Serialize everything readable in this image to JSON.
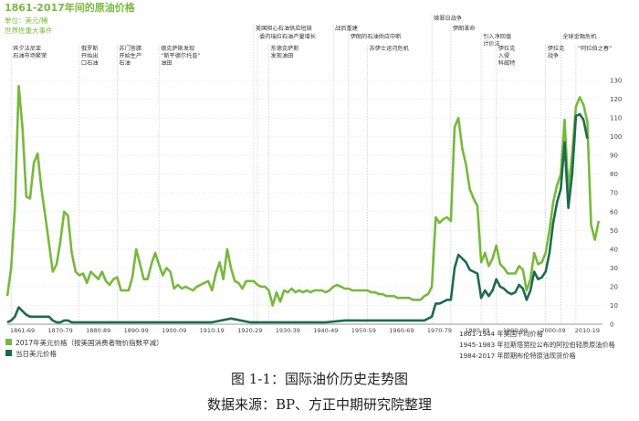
{
  "figure": {
    "caption": "图 1-1：国际油价历史走势图",
    "source": "数据来源：BP、方正中期研究院整理"
  },
  "chart_data": {
    "type": "line",
    "title": "1861-2017年间的原油价格",
    "unit_label": "单位：美元/桶",
    "events_heading": "世界性重大事件",
    "xlim": [
      1861,
      2018
    ],
    "ylim": [
      0,
      130
    ],
    "y_ticks": [
      0,
      10,
      20,
      30,
      40,
      50,
      60,
      70,
      80,
      90,
      100,
      110,
      120,
      130
    ],
    "x_tick_labels": [
      {
        "label": "1861-69",
        "x": 1865
      },
      {
        "label": "1870-79",
        "x": 1875
      },
      {
        "label": "1880-89",
        "x": 1885
      },
      {
        "label": "1890-99",
        "x": 1895
      },
      {
        "label": "1900-09",
        "x": 1905
      },
      {
        "label": "1910-19",
        "x": 1915
      },
      {
        "label": "1920-29",
        "x": 1925
      },
      {
        "label": "1930-39",
        "x": 1935
      },
      {
        "label": "1940-49",
        "x": 1945
      },
      {
        "label": "1950-59",
        "x": 1955
      },
      {
        "label": "1960-69",
        "x": 1965
      },
      {
        "label": "1970-79",
        "x": 1975
      },
      {
        "label": "1980-89",
        "x": 1985
      },
      {
        "label": "1990-99",
        "x": 1995
      },
      {
        "label": "2000-09",
        "x": 2005
      },
      {
        "label": "2010-19",
        "x": 2014
      }
    ],
    "legend": [
      {
        "name": "2017年美元价格（按美国消费者物价指数平减）",
        "color": "#78b83c"
      },
      {
        "name": "当日美元价格",
        "color": "#1d6b4e"
      }
    ],
    "notes": [
      "1861-1944 年美国平均价格",
      "1945-1983 年拉斯塔努拉公布的阿拉伯轻质原油价格",
      "1984-2017 年即期布伦特原油现货价格"
    ],
    "events": [
      {
        "x": 1862,
        "lines": [
          "宾夕法尼亚",
          "石油市场繁荣"
        ]
      },
      {
        "x": 1880,
        "lines": [
          "俄罗斯",
          "开始出",
          "口石油"
        ]
      },
      {
        "x": 1890,
        "lines": [
          "苏门答腊",
          "开始生产",
          "石油"
        ]
      },
      {
        "x": 1901,
        "lines": [
          "德克萨斯发现",
          "“斯平德尔托普”",
          "油田"
        ]
      },
      {
        "x": 1926,
        "lines": [
          "美国担心石油供应短缺"
        ]
      },
      {
        "x": 1927,
        "lines": [
          "委内瑞拉石油产量增长"
        ]
      },
      {
        "x": 1930,
        "lines": [
          "东德克萨斯",
          "发现油田"
        ]
      },
      {
        "x": 1947,
        "lines": [
          "战后重建"
        ]
      },
      {
        "x": 1951,
        "lines": [
          "伊朗的石油供应中断"
        ]
      },
      {
        "x": 1956,
        "lines": [
          "苏伊士运河危机"
        ]
      },
      {
        "x": 1973,
        "lines": [
          "赎罪日战争"
        ]
      },
      {
        "x": 1978,
        "lines": [
          "伊朗革命"
        ]
      },
      {
        "x": 1986,
        "lines": [
          "引入净回值",
          "计价法"
        ]
      },
      {
        "x": 1990,
        "lines": [
          "伊拉克",
          "入侵",
          "科威特"
        ]
      },
      {
        "x": 2007,
        "lines": [
          "全球金融危机"
        ]
      },
      {
        "x": 2003,
        "lines": [
          "伊拉克",
          "战争"
        ]
      },
      {
        "x": 2011,
        "lines": [
          "“阿拉伯之春”"
        ]
      }
    ],
    "series": [
      {
        "name": "2017年美元价格（按美国消费者物价指数平减）",
        "color": "#78b83c",
        "x": [
          1861,
          1862,
          1863,
          1864,
          1865,
          1866,
          1867,
          1868,
          1869,
          1870,
          1871,
          1872,
          1873,
          1874,
          1875,
          1876,
          1877,
          1878,
          1879,
          1880,
          1881,
          1882,
          1883,
          1884,
          1885,
          1886,
          1887,
          1888,
          1889,
          1890,
          1891,
          1892,
          1893,
          1894,
          1895,
          1896,
          1897,
          1898,
          1899,
          1900,
          1901,
          1902,
          1903,
          1904,
          1905,
          1906,
          1907,
          1908,
          1909,
          1910,
          1911,
          1912,
          1913,
          1914,
          1915,
          1916,
          1917,
          1918,
          1919,
          1920,
          1921,
          1922,
          1923,
          1924,
          1925,
          1926,
          1927,
          1928,
          1929,
          1930,
          1931,
          1932,
          1933,
          1934,
          1935,
          1936,
          1937,
          1938,
          1939,
          1940,
          1941,
          1942,
          1943,
          1944,
          1945,
          1946,
          1947,
          1948,
          1949,
          1950,
          1951,
          1952,
          1953,
          1954,
          1955,
          1956,
          1957,
          1958,
          1959,
          1960,
          1961,
          1962,
          1963,
          1964,
          1965,
          1966,
          1967,
          1968,
          1969,
          1970,
          1971,
          1972,
          1973,
          1974,
          1975,
          1976,
          1977,
          1978,
          1979,
          1980,
          1981,
          1982,
          1983,
          1984,
          1985,
          1986,
          1987,
          1988,
          1989,
          1990,
          1991,
          1992,
          1993,
          1994,
          1995,
          1996,
          1997,
          1998,
          1999,
          2000,
          2001,
          2002,
          2003,
          2004,
          2005,
          2006,
          2007,
          2008,
          2009,
          2010,
          2011,
          2012,
          2013,
          2014,
          2015,
          2016,
          2017
        ],
        "values": [
          15,
          30,
          62,
          127,
          105,
          68,
          67,
          86,
          91,
          72,
          58,
          43,
          28,
          32,
          44,
          60,
          58,
          38,
          28,
          26,
          27,
          22,
          28,
          26,
          24,
          28,
          23,
          21,
          24,
          25,
          18,
          18,
          18,
          25,
          40,
          32,
          24,
          24,
          32,
          38,
          32,
          26,
          30,
          28,
          19,
          21,
          19,
          20,
          19,
          18,
          20,
          21,
          22,
          23,
          18,
          27,
          33,
          24,
          40,
          30,
          23,
          22,
          19,
          23,
          23,
          23,
          21,
          20,
          20,
          18,
          10,
          17,
          12,
          18,
          17,
          19,
          17,
          18,
          17,
          18,
          17,
          18,
          18,
          18,
          17,
          18,
          20,
          21,
          20,
          19,
          19,
          18,
          18,
          18,
          18,
          18,
          17,
          17,
          16,
          16,
          15,
          15,
          15,
          14,
          14,
          14,
          14,
          13,
          13,
          13,
          15,
          16,
          20,
          57,
          54,
          56,
          57,
          55,
          105,
          110,
          94,
          85,
          72,
          67,
          63,
          33,
          38,
          31,
          35,
          42,
          32,
          30,
          27,
          27,
          27,
          31,
          29,
          18,
          24,
          38,
          32,
          33,
          38,
          50,
          65,
          74,
          80,
          109,
          71,
          91,
          116,
          121,
          117,
          108,
          53,
          45,
          55
        ]
      },
      {
        "name": "当日美元价格",
        "color": "#1d6b4e",
        "x": [
          1861,
          1862,
          1863,
          1864,
          1865,
          1866,
          1867,
          1868,
          1869,
          1870,
          1871,
          1872,
          1873,
          1874,
          1875,
          1876,
          1877,
          1878,
          1879,
          1880,
          1885,
          1890,
          1895,
          1900,
          1905,
          1910,
          1915,
          1920,
          1925,
          1930,
          1935,
          1940,
          1945,
          1950,
          1955,
          1960,
          1965,
          1970,
          1971,
          1972,
          1973,
          1974,
          1975,
          1976,
          1977,
          1978,
          1979,
          1980,
          1981,
          1982,
          1983,
          1984,
          1985,
          1986,
          1987,
          1988,
          1989,
          1990,
          1991,
          1992,
          1993,
          1994,
          1995,
          1996,
          1997,
          1998,
          1999,
          2000,
          2001,
          2002,
          2003,
          2004,
          2005,
          2006,
          2007,
          2008,
          2009,
          2010,
          2011,
          2012,
          2013,
          2014
        ],
        "values": [
          1,
          2,
          4,
          9,
          7,
          5,
          4,
          4,
          4,
          4,
          4,
          4,
          2,
          1,
          1,
          2,
          2,
          1,
          1,
          1,
          1,
          1,
          1,
          1,
          1,
          1,
          1,
          3,
          1,
          1,
          1,
          1,
          1,
          2,
          2,
          2,
          2,
          2,
          2,
          3,
          4,
          11,
          11,
          12,
          13,
          13,
          30,
          37,
          35,
          33,
          29,
          28,
          27,
          14,
          18,
          15,
          18,
          24,
          20,
          19,
          17,
          16,
          17,
          21,
          19,
          13,
          18,
          28,
          24,
          25,
          28,
          38,
          54,
          65,
          72,
          97,
          62,
          80,
          111,
          112,
          109,
          99
        ]
      }
    ]
  }
}
